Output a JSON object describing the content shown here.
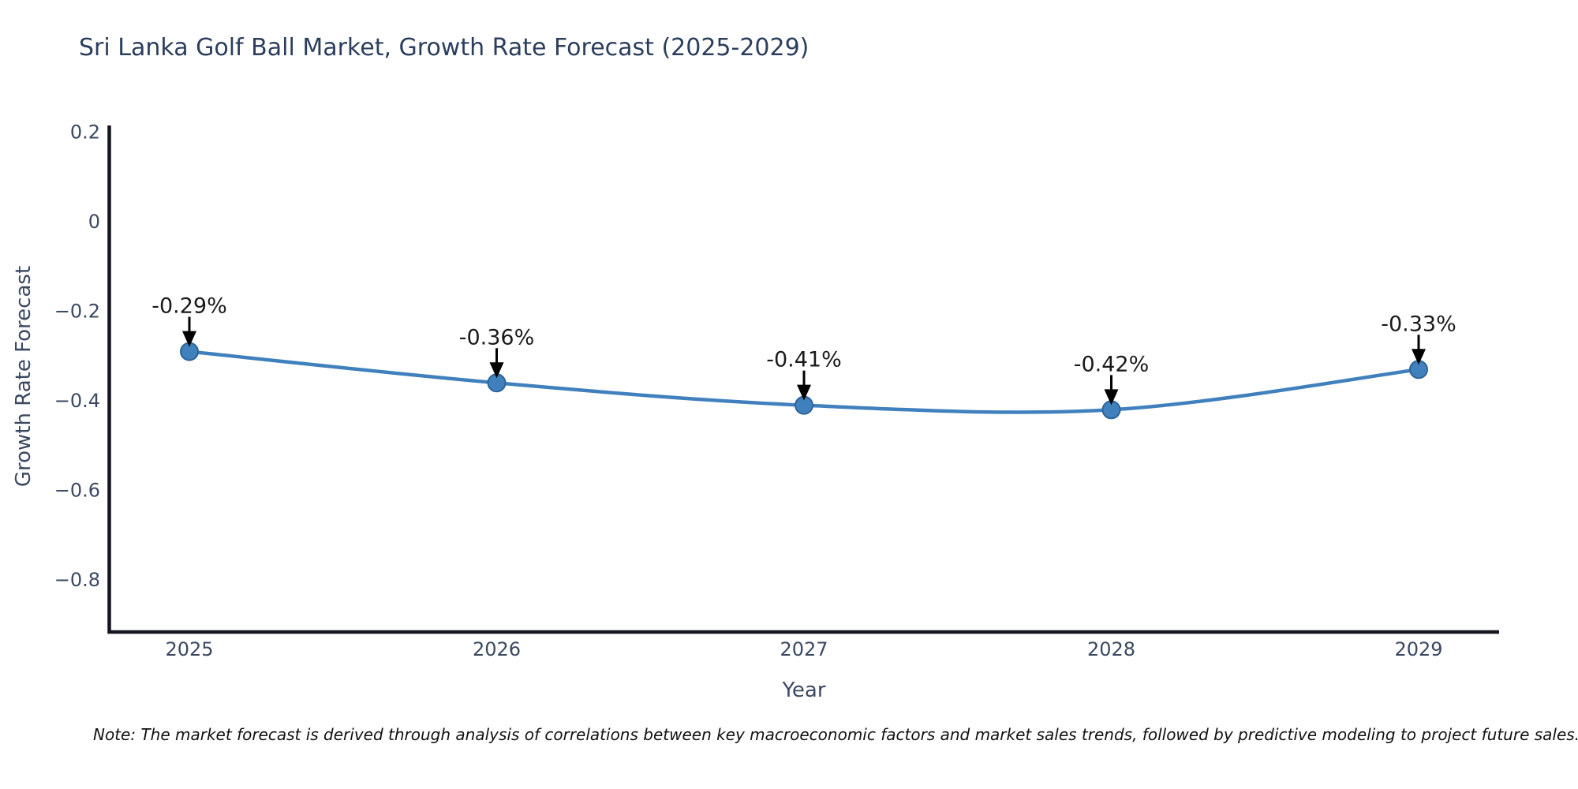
{
  "chart_data": {
    "type": "line",
    "title": "Sri Lanka Golf Ball Market, Growth Rate Forecast (2025-2029)",
    "xlabel": "Year",
    "ylabel": "Growth Rate Forecast",
    "categories": [
      "2025",
      "2026",
      "2027",
      "2028",
      "2029"
    ],
    "values": [
      -0.29,
      -0.36,
      -0.41,
      -0.42,
      -0.33
    ],
    "point_labels": [
      "-0.29%",
      "-0.36%",
      "-0.41%",
      "-0.42%",
      "-0.33%"
    ],
    "y_tick_values": [
      0.2,
      0,
      -0.2,
      -0.4,
      -0.6,
      -0.8
    ],
    "y_tick_labels": [
      "0.2",
      "0",
      "−0.2",
      "−0.4",
      "−0.6",
      "−0.8"
    ],
    "ylim": [
      -0.92,
      0.215
    ],
    "grid": false,
    "legend_position": "none",
    "annotations_have_arrows": true,
    "smooth_line": true
  },
  "colors": {
    "background": "#ffffff",
    "line": "#4080bd",
    "marker_fill": "#4080bd",
    "marker_edge": "#2e6399",
    "axis_spine": "#15151f",
    "tick_text": "#3b4861",
    "title_text": "#2c3e5d",
    "axis_label_text": "#3b4861",
    "annotation_text": "#1a1a1a",
    "arrow": "#000000",
    "note_text": "#111111"
  },
  "note": "Note: The market forecast is derived through analysis of correlations between key macroeconomic factors and market sales trends, followed by predictive modeling to project future sales."
}
